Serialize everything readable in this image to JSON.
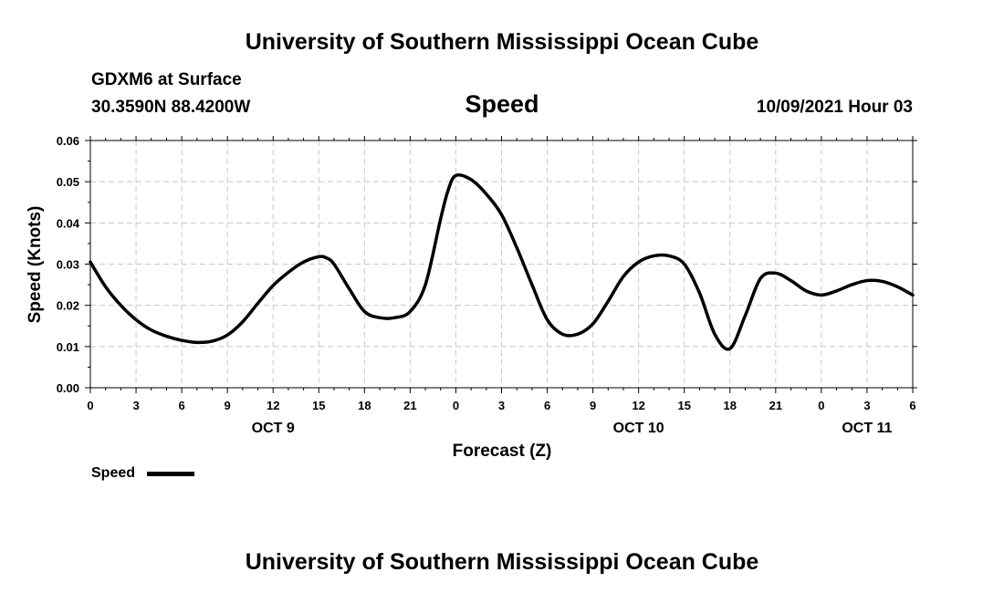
{
  "header": {
    "title": "University of Southern Mississippi Ocean Cube",
    "station": "GDXM6 at Surface",
    "coords": "30.3590N  88.4200W",
    "variable": "Speed",
    "datetime": "10/09/2021 Hour 03"
  },
  "footer": {
    "title": "University of Southern Mississippi Ocean Cube"
  },
  "legend": {
    "label": "Speed"
  },
  "colors": {
    "line": "#000000",
    "grid": "#c8c8c8"
  },
  "chart_data": {
    "type": "line",
    "title": "Speed",
    "xlabel": "Forecast (Z)",
    "ylabel": "Speed (Knots)",
    "xlim": [
      0,
      54
    ],
    "ylim": [
      0,
      0.06
    ],
    "grid": true,
    "x_ticks": [
      0,
      3,
      6,
      9,
      12,
      15,
      18,
      21,
      24,
      27,
      30,
      33,
      36,
      39,
      42,
      45,
      48,
      51,
      54
    ],
    "x_tick_labels": [
      "0",
      "3",
      "6",
      "9",
      "12",
      "15",
      "18",
      "21",
      "0",
      "3",
      "6",
      "9",
      "12",
      "15",
      "18",
      "21",
      "0",
      "3",
      "6"
    ],
    "y_ticks": [
      0,
      0.01,
      0.02,
      0.03,
      0.04,
      0.05,
      0.06
    ],
    "y_tick_labels": [
      "0.00",
      "0.01",
      "0.02",
      "0.03",
      "0.04",
      "0.05",
      "0.06"
    ],
    "date_labels": [
      {
        "x": 12,
        "label": "OCT 9"
      },
      {
        "x": 36,
        "label": "OCT 10"
      },
      {
        "x": 51,
        "label": "OCT 11"
      }
    ],
    "series": [
      {
        "name": "Speed",
        "x": [
          0,
          1,
          2,
          3,
          4,
          5,
          6,
          7,
          8,
          9,
          10,
          11,
          12,
          13,
          14,
          15,
          15.5,
          16,
          17,
          18,
          19,
          20,
          21,
          22,
          23,
          23.5,
          24,
          25,
          26,
          27,
          28,
          29,
          30,
          31,
          32,
          33,
          34,
          35,
          36,
          37,
          38,
          39,
          40,
          41,
          42,
          43,
          44,
          45,
          46,
          47,
          48,
          49,
          50,
          51,
          52,
          53,
          54
        ],
        "values": [
          0.0305,
          0.0245,
          0.02,
          0.0165,
          0.014,
          0.0125,
          0.0115,
          0.011,
          0.0113,
          0.0128,
          0.016,
          0.0205,
          0.0248,
          0.028,
          0.0305,
          0.0318,
          0.0315,
          0.03,
          0.024,
          0.0185,
          0.017,
          0.017,
          0.0185,
          0.025,
          0.041,
          0.048,
          0.0515,
          0.0505,
          0.047,
          0.042,
          0.034,
          0.025,
          0.0165,
          0.013,
          0.013,
          0.0155,
          0.021,
          0.027,
          0.0305,
          0.032,
          0.032,
          0.03,
          0.023,
          0.013,
          0.0095,
          0.0175,
          0.0265,
          0.0278,
          0.026,
          0.0235,
          0.0225,
          0.0235,
          0.025,
          0.026,
          0.0258,
          0.0245,
          0.0225
        ]
      }
    ]
  }
}
